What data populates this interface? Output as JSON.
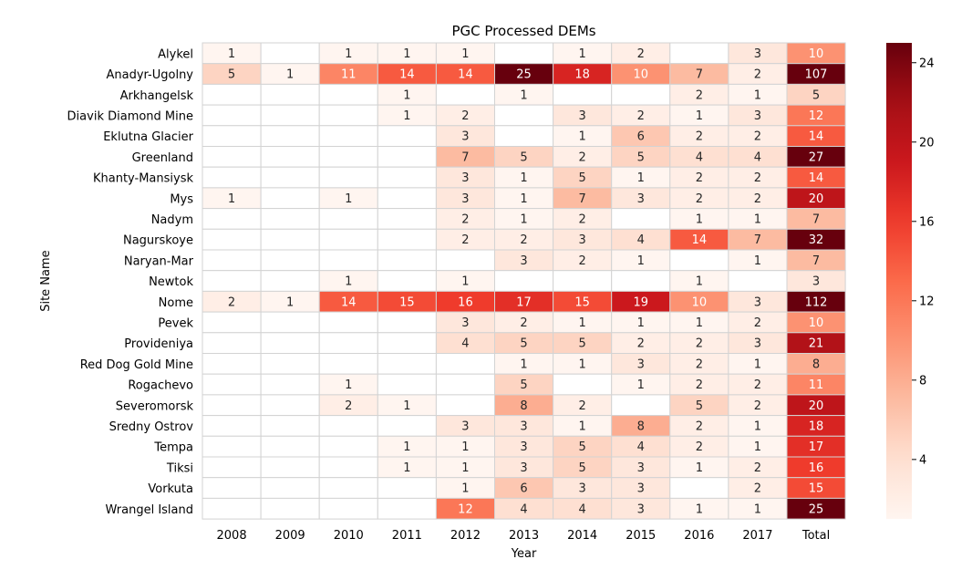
{
  "chart_data": {
    "type": "heatmap",
    "title": "PGC Processed DEMs",
    "xlabel": "Year",
    "ylabel": "Site Name",
    "x_categories": [
      "2008",
      "2009",
      "2010",
      "2011",
      "2012",
      "2013",
      "2014",
      "2015",
      "2016",
      "2017",
      "Total"
    ],
    "y_categories": [
      "Alykel",
      "Anadyr-Ugolny",
      "Arkhangelsk",
      "Diavik Diamond Mine",
      "Eklutna Glacier",
      "Greenland",
      "Khanty-Mansiysk",
      "Mys",
      "Nadym",
      "Nagurskoye",
      "Naryan-Mar",
      "Newtok",
      "Nome",
      "Pevek",
      "Provideniya",
      "Red Dog Gold Mine",
      "Rogachevo",
      "Severomorsk",
      "Sredny Ostrov",
      "Tempa",
      "Tiksi",
      "Vorkuta",
      "Wrangel Island"
    ],
    "values": [
      [
        1,
        null,
        1,
        1,
        1,
        null,
        1,
        2,
        null,
        3,
        10
      ],
      [
        5,
        1,
        11,
        14,
        14,
        25,
        18,
        10,
        7,
        2,
        107
      ],
      [
        null,
        null,
        null,
        1,
        null,
        1,
        null,
        null,
        2,
        1,
        5
      ],
      [
        null,
        null,
        null,
        1,
        2,
        null,
        3,
        2,
        1,
        3,
        12
      ],
      [
        null,
        null,
        null,
        null,
        3,
        null,
        1,
        6,
        2,
        2,
        14
      ],
      [
        null,
        null,
        null,
        null,
        7,
        5,
        2,
        5,
        4,
        4,
        27
      ],
      [
        null,
        null,
        null,
        null,
        3,
        1,
        5,
        1,
        2,
        2,
        14
      ],
      [
        1,
        null,
        1,
        null,
        3,
        1,
        7,
        3,
        2,
        2,
        20
      ],
      [
        null,
        null,
        null,
        null,
        2,
        1,
        2,
        null,
        1,
        1,
        7
      ],
      [
        null,
        null,
        null,
        null,
        2,
        2,
        3,
        4,
        14,
        7,
        32
      ],
      [
        null,
        null,
        null,
        null,
        null,
        3,
        2,
        1,
        null,
        1,
        7
      ],
      [
        null,
        null,
        1,
        null,
        1,
        null,
        null,
        null,
        1,
        null,
        3
      ],
      [
        2,
        1,
        14,
        15,
        16,
        17,
        15,
        19,
        10,
        3,
        112
      ],
      [
        null,
        null,
        null,
        null,
        3,
        2,
        1,
        1,
        1,
        2,
        10
      ],
      [
        null,
        null,
        null,
        null,
        4,
        5,
        5,
        2,
        2,
        3,
        21
      ],
      [
        null,
        null,
        null,
        null,
        null,
        1,
        1,
        3,
        2,
        1,
        8
      ],
      [
        null,
        null,
        1,
        null,
        null,
        5,
        null,
        1,
        2,
        2,
        11
      ],
      [
        null,
        null,
        2,
        1,
        null,
        8,
        2,
        null,
        5,
        2,
        20
      ],
      [
        null,
        null,
        null,
        null,
        3,
        3,
        1,
        8,
        2,
        1,
        18
      ],
      [
        null,
        null,
        null,
        1,
        1,
        3,
        5,
        4,
        2,
        1,
        17
      ],
      [
        null,
        null,
        null,
        1,
        1,
        3,
        5,
        3,
        1,
        2,
        16
      ],
      [
        null,
        null,
        null,
        null,
        1,
        6,
        3,
        3,
        null,
        2,
        15
      ],
      [
        null,
        null,
        null,
        null,
        12,
        4,
        4,
        3,
        1,
        1,
        25
      ]
    ],
    "colorbar": {
      "min": 1,
      "max": 25,
      "ticks": [
        4,
        8,
        12,
        16,
        20,
        24
      ]
    },
    "colormap": "Reds",
    "grid_color": "#d3d3d3"
  }
}
